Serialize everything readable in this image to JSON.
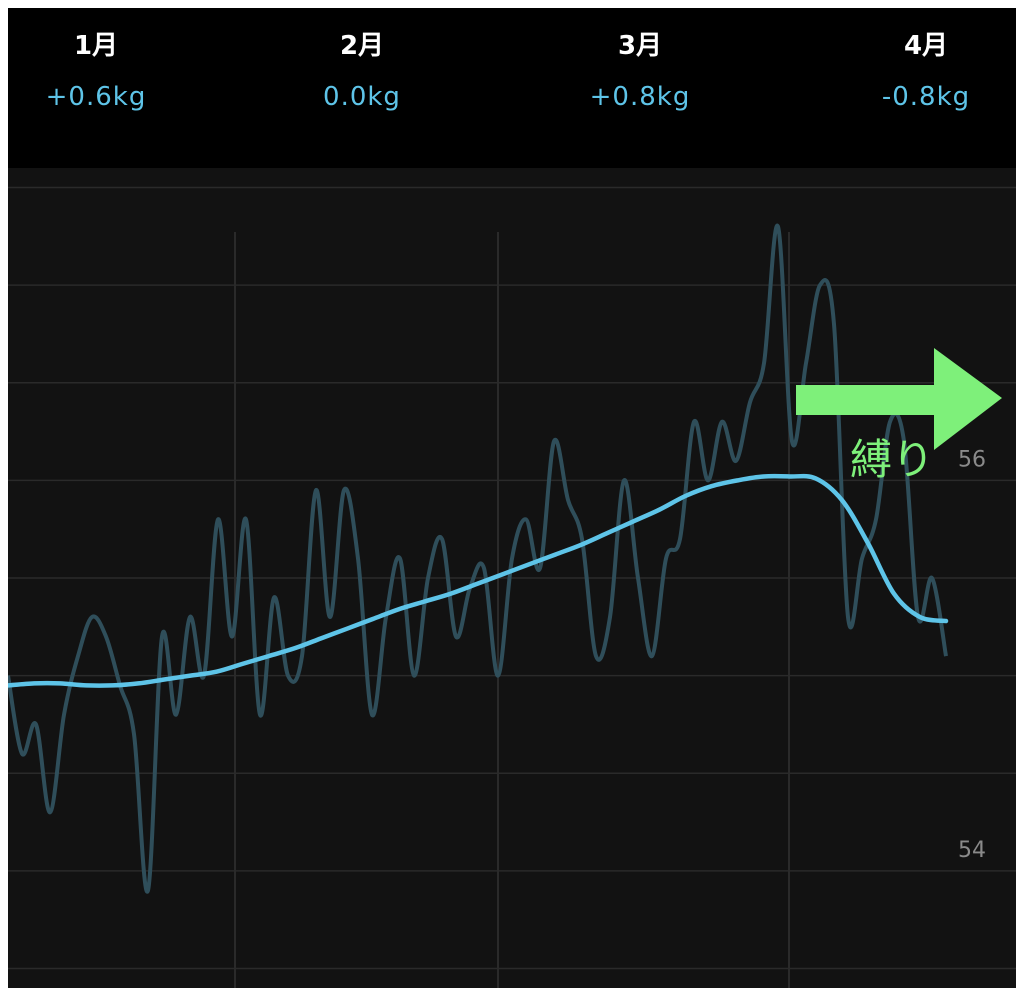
{
  "header": {
    "months": [
      {
        "label": "1月",
        "delta": "+0.6kg"
      },
      {
        "label": "2月",
        "delta": "0.0kg"
      },
      {
        "label": "3月",
        "delta": "+0.8kg"
      },
      {
        "label": "4月",
        "delta": "-0.8kg"
      }
    ]
  },
  "annotation": {
    "text": "縛り",
    "color": "#7ef07a"
  },
  "colors": {
    "trend": "#5ec4e8",
    "daily": "#2f4e5a",
    "grid": "#2a2a2a",
    "tick": "#8a8a8a",
    "header_bg": "#000000",
    "chart_bg": "#121212"
  },
  "chart_data": {
    "type": "line",
    "xlabel": "",
    "ylabel": "",
    "ylim": [
      53.4,
      57.6
    ],
    "y_ticks": [
      54,
      56
    ],
    "grid": true,
    "series": [
      {
        "style": "raw",
        "values": [
          55.0,
          54.6,
          54.75,
          54.3,
          54.8,
          55.1,
          55.3,
          55.2,
          54.95,
          54.7,
          53.9,
          55.2,
          54.8,
          55.3,
          55.0,
          55.8,
          55.2,
          55.8,
          54.8,
          55.4,
          55.0,
          55.1,
          55.95,
          55.3,
          55.95,
          55.6,
          54.8,
          55.3,
          55.6,
          55.0,
          55.5,
          55.7,
          55.2,
          55.45,
          55.55,
          55.0,
          55.6,
          55.8,
          55.55,
          56.2,
          55.9,
          55.7,
          55.1,
          55.3,
          56.0,
          55.5,
          55.1,
          55.6,
          55.7,
          56.3,
          56.0,
          56.3,
          56.1,
          56.4,
          56.6,
          57.3,
          56.2,
          56.6,
          57.0,
          56.8,
          55.3,
          55.6,
          55.8,
          56.3,
          56.2,
          55.3,
          55.5,
          55.1
        ]
      },
      {
        "style": "trend",
        "values": [
          54.95,
          54.96,
          54.96,
          54.95,
          54.95,
          54.96,
          54.98,
          55.0,
          55.02,
          55.06,
          55.1,
          55.14,
          55.19,
          55.24,
          55.29,
          55.34,
          55.38,
          55.42,
          55.47,
          55.52,
          55.57,
          55.62,
          55.67,
          55.73,
          55.79,
          55.85,
          55.92,
          55.97,
          56.0,
          56.02,
          56.02,
          56.01,
          55.9,
          55.68,
          55.42,
          55.3,
          55.28
        ]
      }
    ]
  }
}
